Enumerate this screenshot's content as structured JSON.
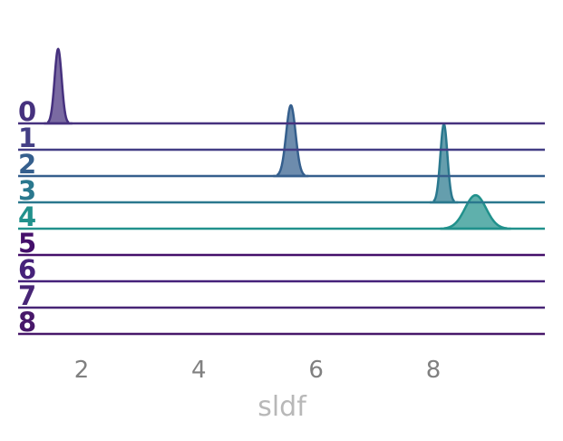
{
  "chart_data": {
    "type": "ridgeline",
    "title": "",
    "xlabel": "sldf",
    "ylabel": "",
    "xlim": [
      1.0,
      9.8
    ],
    "x_ticks": [
      2,
      4,
      6,
      8
    ],
    "x_tick_labels": [
      "2",
      "4",
      "6",
      "8"
    ],
    "grid": false,
    "legend": "none",
    "rows": [
      {
        "label": "0",
        "color": "#46317e",
        "peak_x": 1.6,
        "spread": 0.06,
        "relative_height": 1.0
      },
      {
        "label": "1",
        "color": "#433e85",
        "peak_x": null,
        "spread": null,
        "relative_height": 0
      },
      {
        "label": "2",
        "color": "#355f8d",
        "peak_x": 5.57,
        "spread": 0.08,
        "relative_height": 0.95
      },
      {
        "label": "3",
        "color": "#2a788e",
        "peak_x": 8.18,
        "spread": 0.06,
        "relative_height": 1.05
      },
      {
        "label": "4",
        "color": "#21918c",
        "peak_x": 8.72,
        "spread": 0.18,
        "relative_height": 0.45
      },
      {
        "label": "5",
        "color": "#440f6a",
        "peak_x": null,
        "spread": null,
        "relative_height": 0
      },
      {
        "label": "6",
        "color": "#46217a",
        "peak_x": null,
        "spread": null,
        "relative_height": 0
      },
      {
        "label": "7",
        "color": "#482576",
        "peak_x": null,
        "spread": null,
        "relative_height": 0
      },
      {
        "label": "8",
        "color": "#48186a",
        "peak_x": null,
        "spread": null,
        "relative_height": 0
      }
    ]
  }
}
